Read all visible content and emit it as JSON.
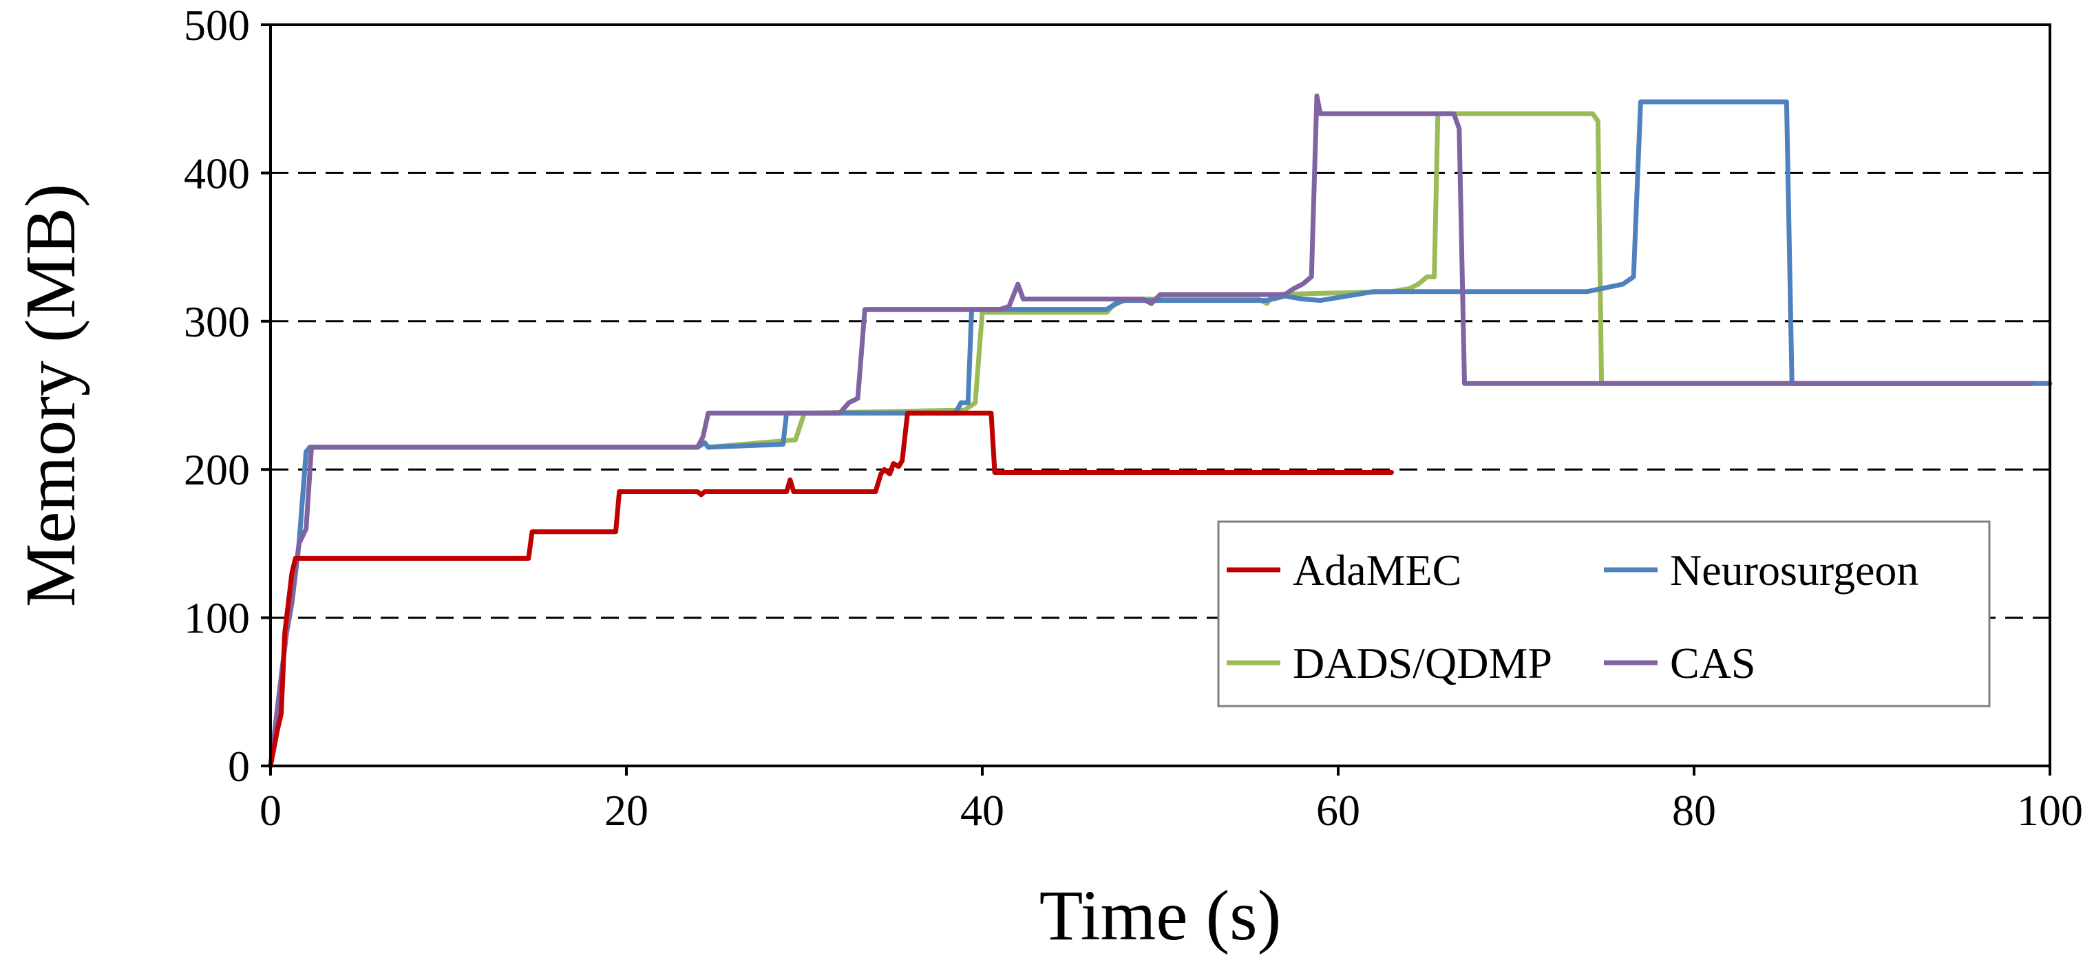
{
  "chart_data": {
    "type": "line",
    "title": "",
    "xlabel": "Time (s)",
    "ylabel": "Memory (MB)",
    "xlim": [
      0,
      100
    ],
    "ylim": [
      0,
      500
    ],
    "x_ticks": [
      0,
      20,
      40,
      60,
      80,
      100
    ],
    "y_ticks": [
      0,
      100,
      200,
      300,
      400,
      500
    ],
    "grid": "horizontal dashed at 100, 200, 300, 400",
    "legend_position": "bottom-right",
    "series": [
      {
        "name": "AdaMEC",
        "color": "#c00000",
        "x": [
          0,
          0.4,
          0.6,
          0.8,
          1.0,
          1.2,
          1.4,
          1.6,
          14.5,
          14.7,
          19.4,
          19.6,
          24.0,
          24.2,
          24.4,
          29.0,
          29.2,
          29.4,
          34.0,
          34.3,
          34.5,
          34.8,
          35.0,
          35.3,
          35.5,
          35.8,
          40.5,
          40.7,
          63.0
        ],
        "y": [
          0,
          25,
          35,
          90,
          110,
          130,
          140,
          140,
          140,
          158,
          158,
          185,
          185,
          183,
          185,
          185,
          193,
          185,
          185,
          197,
          200,
          197,
          204,
          202,
          206,
          238,
          238,
          198,
          198
        ]
      },
      {
        "name": "Neurosurgeon",
        "color": "#4f81bd",
        "x": [
          0,
          0.3,
          0.6,
          0.9,
          1.2,
          1.6,
          2.0,
          2.2,
          24.0,
          24.4,
          24.6,
          28.8,
          29.0,
          29.2,
          38.5,
          38.8,
          39.2,
          39.4,
          47.0,
          47.5,
          48.0,
          56.0,
          57.0,
          58.0,
          59.0,
          60.0,
          61.0,
          62.0,
          66.0,
          68.0,
          70.0,
          72.0,
          74.0,
          76.0,
          76.6,
          77.0,
          85.2,
          85.5,
          100.0
        ],
        "y": [
          0,
          30,
          60,
          90,
          110,
          150,
          212,
          215,
          215,
          218,
          215,
          217,
          238,
          238,
          238,
          245,
          245,
          308,
          308,
          312,
          314,
          314,
          317,
          315,
          314,
          316,
          318,
          320,
          320,
          320,
          320,
          320,
          320,
          325,
          330,
          448,
          448,
          258,
          258
        ]
      },
      {
        "name": "DADS/QDMP",
        "color": "#9bbb59",
        "x": [
          0,
          0.3,
          0.6,
          0.9,
          1.2,
          1.6,
          2.0,
          2.3,
          24.0,
          24.4,
          24.6,
          29.5,
          30.0,
          30.4,
          39.0,
          39.6,
          40.0,
          47.0,
          47.3,
          48.0,
          55.5,
          56.0,
          56.3,
          63.0,
          64.0,
          64.5,
          65.0,
          65.4,
          65.6,
          74.3,
          74.6,
          74.8,
          75.0,
          99.0
        ],
        "y": [
          0,
          30,
          60,
          90,
          110,
          150,
          212,
          215,
          215,
          218,
          215,
          220,
          238,
          238,
          240,
          245,
          306,
          306,
          310,
          315,
          315,
          312,
          318,
          320,
          322,
          325,
          330,
          330,
          440,
          440,
          435,
          258,
          258,
          258
        ]
      },
      {
        "name": "CAS",
        "color": "#8064a2",
        "x": [
          0,
          0.3,
          0.6,
          0.9,
          1.2,
          1.6,
          2.0,
          2.3,
          24.0,
          24.3,
          24.6,
          32.0,
          32.5,
          33.0,
          33.4,
          41.0,
          41.5,
          42.0,
          42.3,
          49.0,
          49.5,
          50.0,
          57.0,
          57.5,
          58.0,
          58.5,
          58.8,
          59.0,
          59.3,
          66.5,
          66.8,
          67.1,
          67.4,
          99.0
        ],
        "y": [
          0,
          30,
          60,
          90,
          110,
          150,
          160,
          215,
          215,
          222,
          238,
          238,
          245,
          248,
          308,
          308,
          310,
          325,
          315,
          315,
          312,
          318,
          318,
          322,
          325,
          330,
          452,
          440,
          440,
          440,
          430,
          258,
          258,
          258
        ]
      }
    ]
  }
}
